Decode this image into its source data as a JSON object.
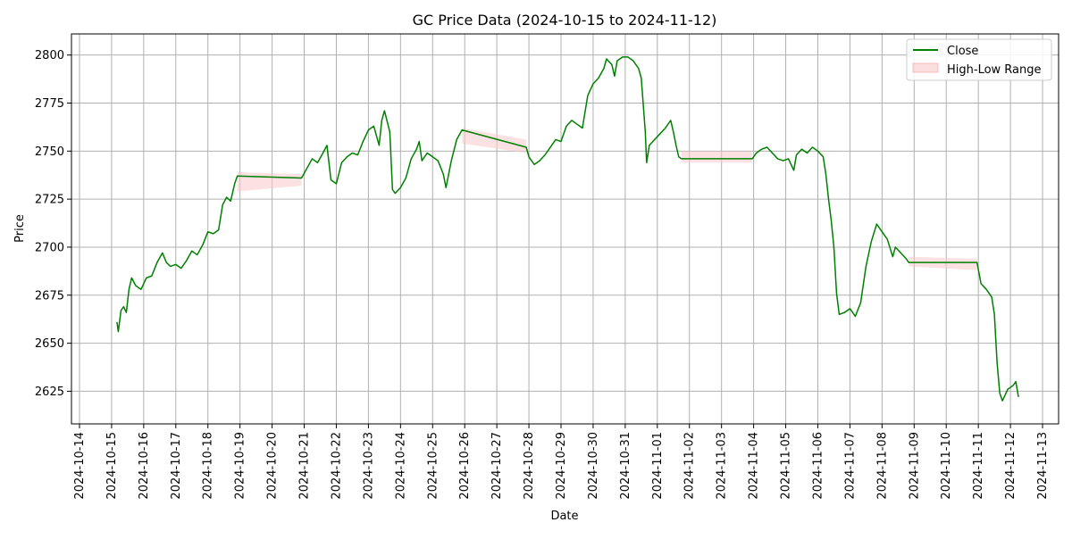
{
  "chart_data": {
    "type": "line",
    "title": "GC Price Data (2024-10-15 to 2024-11-12)",
    "xlabel": "Date",
    "ylabel": "Price",
    "xlim": [
      "2024-10-13T18:00",
      "2024-11-13T12:00"
    ],
    "ylim": [
      2608,
      2811
    ],
    "x_ticks": [
      "2024-10-14",
      "2024-10-15",
      "2024-10-16",
      "2024-10-17",
      "2024-10-18",
      "2024-10-19",
      "2024-10-20",
      "2024-10-21",
      "2024-10-22",
      "2024-10-23",
      "2024-10-24",
      "2024-10-25",
      "2024-10-26",
      "2024-10-27",
      "2024-10-28",
      "2024-10-29",
      "2024-10-30",
      "2024-10-31",
      "2024-11-01",
      "2024-11-02",
      "2024-11-03",
      "2024-11-04",
      "2024-11-05",
      "2024-11-06",
      "2024-11-07",
      "2024-11-08",
      "2024-11-09",
      "2024-11-10",
      "2024-11-11",
      "2024-11-12",
      "2024-11-13"
    ],
    "y_ticks": [
      2625,
      2650,
      2675,
      2700,
      2725,
      2750,
      2775,
      2800
    ],
    "grid": true,
    "legend_placement": "top-right",
    "series": [
      {
        "name": "Close",
        "color": "#008000",
        "points": [
          [
            "2024-10-15T04:00",
            2661
          ],
          [
            "2024-10-15T05:00",
            2656
          ],
          [
            "2024-10-15T07:00",
            2667
          ],
          [
            "2024-10-15T09:00",
            2669
          ],
          [
            "2024-10-15T11:00",
            2666
          ],
          [
            "2024-10-15T13:00",
            2678
          ],
          [
            "2024-10-15T15:00",
            2684
          ],
          [
            "2024-10-15T18:00",
            2680
          ],
          [
            "2024-10-15T22:00",
            2678
          ],
          [
            "2024-10-16T02:00",
            2684
          ],
          [
            "2024-10-16T06:00",
            2685
          ],
          [
            "2024-10-16T10:00",
            2692
          ],
          [
            "2024-10-16T14:00",
            2697
          ],
          [
            "2024-10-16T17:00",
            2692
          ],
          [
            "2024-10-16T20:00",
            2690
          ],
          [
            "2024-10-17T00:00",
            2691
          ],
          [
            "2024-10-17T04:00",
            2689
          ],
          [
            "2024-10-17T08:00",
            2693
          ],
          [
            "2024-10-17T12:00",
            2698
          ],
          [
            "2024-10-17T16:00",
            2696
          ],
          [
            "2024-10-17T20:00",
            2701
          ],
          [
            "2024-10-18T00:00",
            2708
          ],
          [
            "2024-10-18T04:00",
            2707
          ],
          [
            "2024-10-18T08:00",
            2709
          ],
          [
            "2024-10-18T11:00",
            2722
          ],
          [
            "2024-10-18T14:00",
            2726
          ],
          [
            "2024-10-18T17:00",
            2724
          ],
          [
            "2024-10-18T20:00",
            2733
          ],
          [
            "2024-10-18T22:00",
            2737
          ],
          [
            "2024-10-20T22:00",
            2736
          ],
          [
            "2024-10-21T02:00",
            2741
          ],
          [
            "2024-10-21T06:00",
            2746
          ],
          [
            "2024-10-21T10:00",
            2744
          ],
          [
            "2024-10-21T14:00",
            2749
          ],
          [
            "2024-10-21T17:00",
            2753
          ],
          [
            "2024-10-21T20:00",
            2735
          ],
          [
            "2024-10-22T00:00",
            2733
          ],
          [
            "2024-10-22T04:00",
            2744
          ],
          [
            "2024-10-22T08:00",
            2747
          ],
          [
            "2024-10-22T12:00",
            2749
          ],
          [
            "2024-10-22T16:00",
            2748
          ],
          [
            "2024-10-22T20:00",
            2755
          ],
          [
            "2024-10-23T00:00",
            2761
          ],
          [
            "2024-10-23T04:00",
            2763
          ],
          [
            "2024-10-23T08:00",
            2753
          ],
          [
            "2024-10-23T10:00",
            2766
          ],
          [
            "2024-10-23T12:00",
            2771
          ],
          [
            "2024-10-23T16:00",
            2760
          ],
          [
            "2024-10-23T18:00",
            2730
          ],
          [
            "2024-10-23T20:00",
            2728
          ],
          [
            "2024-10-24T00:00",
            2731
          ],
          [
            "2024-10-24T04:00",
            2736
          ],
          [
            "2024-10-24T08:00",
            2746
          ],
          [
            "2024-10-24T12:00",
            2751
          ],
          [
            "2024-10-24T14:00",
            2755
          ],
          [
            "2024-10-24T16:00",
            2745
          ],
          [
            "2024-10-24T20:00",
            2749
          ],
          [
            "2024-10-25T00:00",
            2747
          ],
          [
            "2024-10-25T04:00",
            2745
          ],
          [
            "2024-10-25T08:00",
            2738
          ],
          [
            "2024-10-25T10:00",
            2731
          ],
          [
            "2024-10-25T14:00",
            2745
          ],
          [
            "2024-10-25T18:00",
            2756
          ],
          [
            "2024-10-25T22:00",
            2761
          ],
          [
            "2024-10-27T22:00",
            2752
          ],
          [
            "2024-10-28T00:00",
            2747
          ],
          [
            "2024-10-28T04:00",
            2743
          ],
          [
            "2024-10-28T08:00",
            2745
          ],
          [
            "2024-10-28T12:00",
            2748
          ],
          [
            "2024-10-28T16:00",
            2752
          ],
          [
            "2024-10-28T20:00",
            2756
          ],
          [
            "2024-10-29T00:00",
            2755
          ],
          [
            "2024-10-29T04:00",
            2763
          ],
          [
            "2024-10-29T08:00",
            2766
          ],
          [
            "2024-10-29T12:00",
            2764
          ],
          [
            "2024-10-29T16:00",
            2762
          ],
          [
            "2024-10-29T20:00",
            2779
          ],
          [
            "2024-10-30T00:00",
            2785
          ],
          [
            "2024-10-30T04:00",
            2788
          ],
          [
            "2024-10-30T08:00",
            2793
          ],
          [
            "2024-10-30T10:00",
            2798
          ],
          [
            "2024-10-30T14:00",
            2795
          ],
          [
            "2024-10-30T16:00",
            2789
          ],
          [
            "2024-10-30T18:00",
            2797
          ],
          [
            "2024-10-30T22:00",
            2799
          ],
          [
            "2024-10-31T02:00",
            2799
          ],
          [
            "2024-10-31T06:00",
            2797
          ],
          [
            "2024-10-31T10:00",
            2793
          ],
          [
            "2024-10-31T12:00",
            2788
          ],
          [
            "2024-10-31T15:00",
            2760
          ],
          [
            "2024-10-31T16:00",
            2744
          ],
          [
            "2024-10-31T18:00",
            2753
          ],
          [
            "2024-10-31T22:00",
            2756
          ],
          [
            "2024-11-01T02:00",
            2759
          ],
          [
            "2024-11-01T06:00",
            2762
          ],
          [
            "2024-11-01T10:00",
            2766
          ],
          [
            "2024-11-01T12:00",
            2760
          ],
          [
            "2024-11-01T14:00",
            2753
          ],
          [
            "2024-11-01T16:00",
            2747
          ],
          [
            "2024-11-01T18:00",
            2746
          ],
          [
            "2024-11-03T23:00",
            2746
          ],
          [
            "2024-11-04T02:00",
            2749
          ],
          [
            "2024-11-04T06:00",
            2751
          ],
          [
            "2024-11-04T10:00",
            2752
          ],
          [
            "2024-11-04T14:00",
            2749
          ],
          [
            "2024-11-04T18:00",
            2746
          ],
          [
            "2024-11-04T22:00",
            2745
          ],
          [
            "2024-11-05T02:00",
            2746
          ],
          [
            "2024-11-05T06:00",
            2740
          ],
          [
            "2024-11-05T08:00",
            2748
          ],
          [
            "2024-11-05T12:00",
            2751
          ],
          [
            "2024-11-05T16:00",
            2749
          ],
          [
            "2024-11-05T20:00",
            2752
          ],
          [
            "2024-11-06T00:00",
            2750
          ],
          [
            "2024-11-06T04:00",
            2747
          ],
          [
            "2024-11-06T06:00",
            2738
          ],
          [
            "2024-11-06T08:00",
            2725
          ],
          [
            "2024-11-06T10:00",
            2714
          ],
          [
            "2024-11-06T12:00",
            2700
          ],
          [
            "2024-11-06T14:00",
            2676
          ],
          [
            "2024-11-06T16:00",
            2665
          ],
          [
            "2024-11-06T20:00",
            2666
          ],
          [
            "2024-11-07T00:00",
            2668
          ],
          [
            "2024-11-07T04:00",
            2664
          ],
          [
            "2024-11-07T08:00",
            2671
          ],
          [
            "2024-11-07T12:00",
            2690
          ],
          [
            "2024-11-07T16:00",
            2703
          ],
          [
            "2024-11-07T20:00",
            2712
          ],
          [
            "2024-11-08T00:00",
            2708
          ],
          [
            "2024-11-08T04:00",
            2704
          ],
          [
            "2024-11-08T08:00",
            2695
          ],
          [
            "2024-11-08T10:00",
            2700
          ],
          [
            "2024-11-08T14:00",
            2697
          ],
          [
            "2024-11-08T18:00",
            2694
          ],
          [
            "2024-11-08T20:00",
            2692
          ],
          [
            "2024-11-10T23:00",
            2692
          ],
          [
            "2024-11-11T02:00",
            2681
          ],
          [
            "2024-11-11T06:00",
            2678
          ],
          [
            "2024-11-11T10:00",
            2674
          ],
          [
            "2024-11-11T12:00",
            2665
          ],
          [
            "2024-11-11T14:00",
            2640
          ],
          [
            "2024-11-11T16:00",
            2624
          ],
          [
            "2024-11-11T18:00",
            2620
          ],
          [
            "2024-11-11T22:00",
            2626
          ],
          [
            "2024-11-12T02:00",
            2628
          ],
          [
            "2024-11-12T04:00",
            2630
          ],
          [
            "2024-11-12T06:00",
            2622
          ]
        ]
      },
      {
        "name": "High-Low Range",
        "color": "#f8c8c8",
        "type": "area",
        "bands": [
          {
            "x": [
              "2024-10-18T22:00",
              "2024-10-20T22:00"
            ],
            "low": [
              2729,
              2732
            ],
            "high": [
              2739,
              2738
            ]
          },
          {
            "x": [
              "2024-10-25T22:00",
              "2024-10-27T22:00"
            ],
            "low": [
              2754,
              2749
            ],
            "high": [
              2762,
              2756
            ]
          },
          {
            "x": [
              "2024-11-01T18:00",
              "2024-11-03T23:00"
            ],
            "low": [
              2744,
              2744
            ],
            "high": [
              2750,
              2750
            ]
          },
          {
            "x": [
              "2024-11-08T20:00",
              "2024-11-10T23:00"
            ],
            "low": [
              2690,
              2688
            ],
            "high": [
              2695,
              2694
            ]
          }
        ]
      }
    ]
  }
}
